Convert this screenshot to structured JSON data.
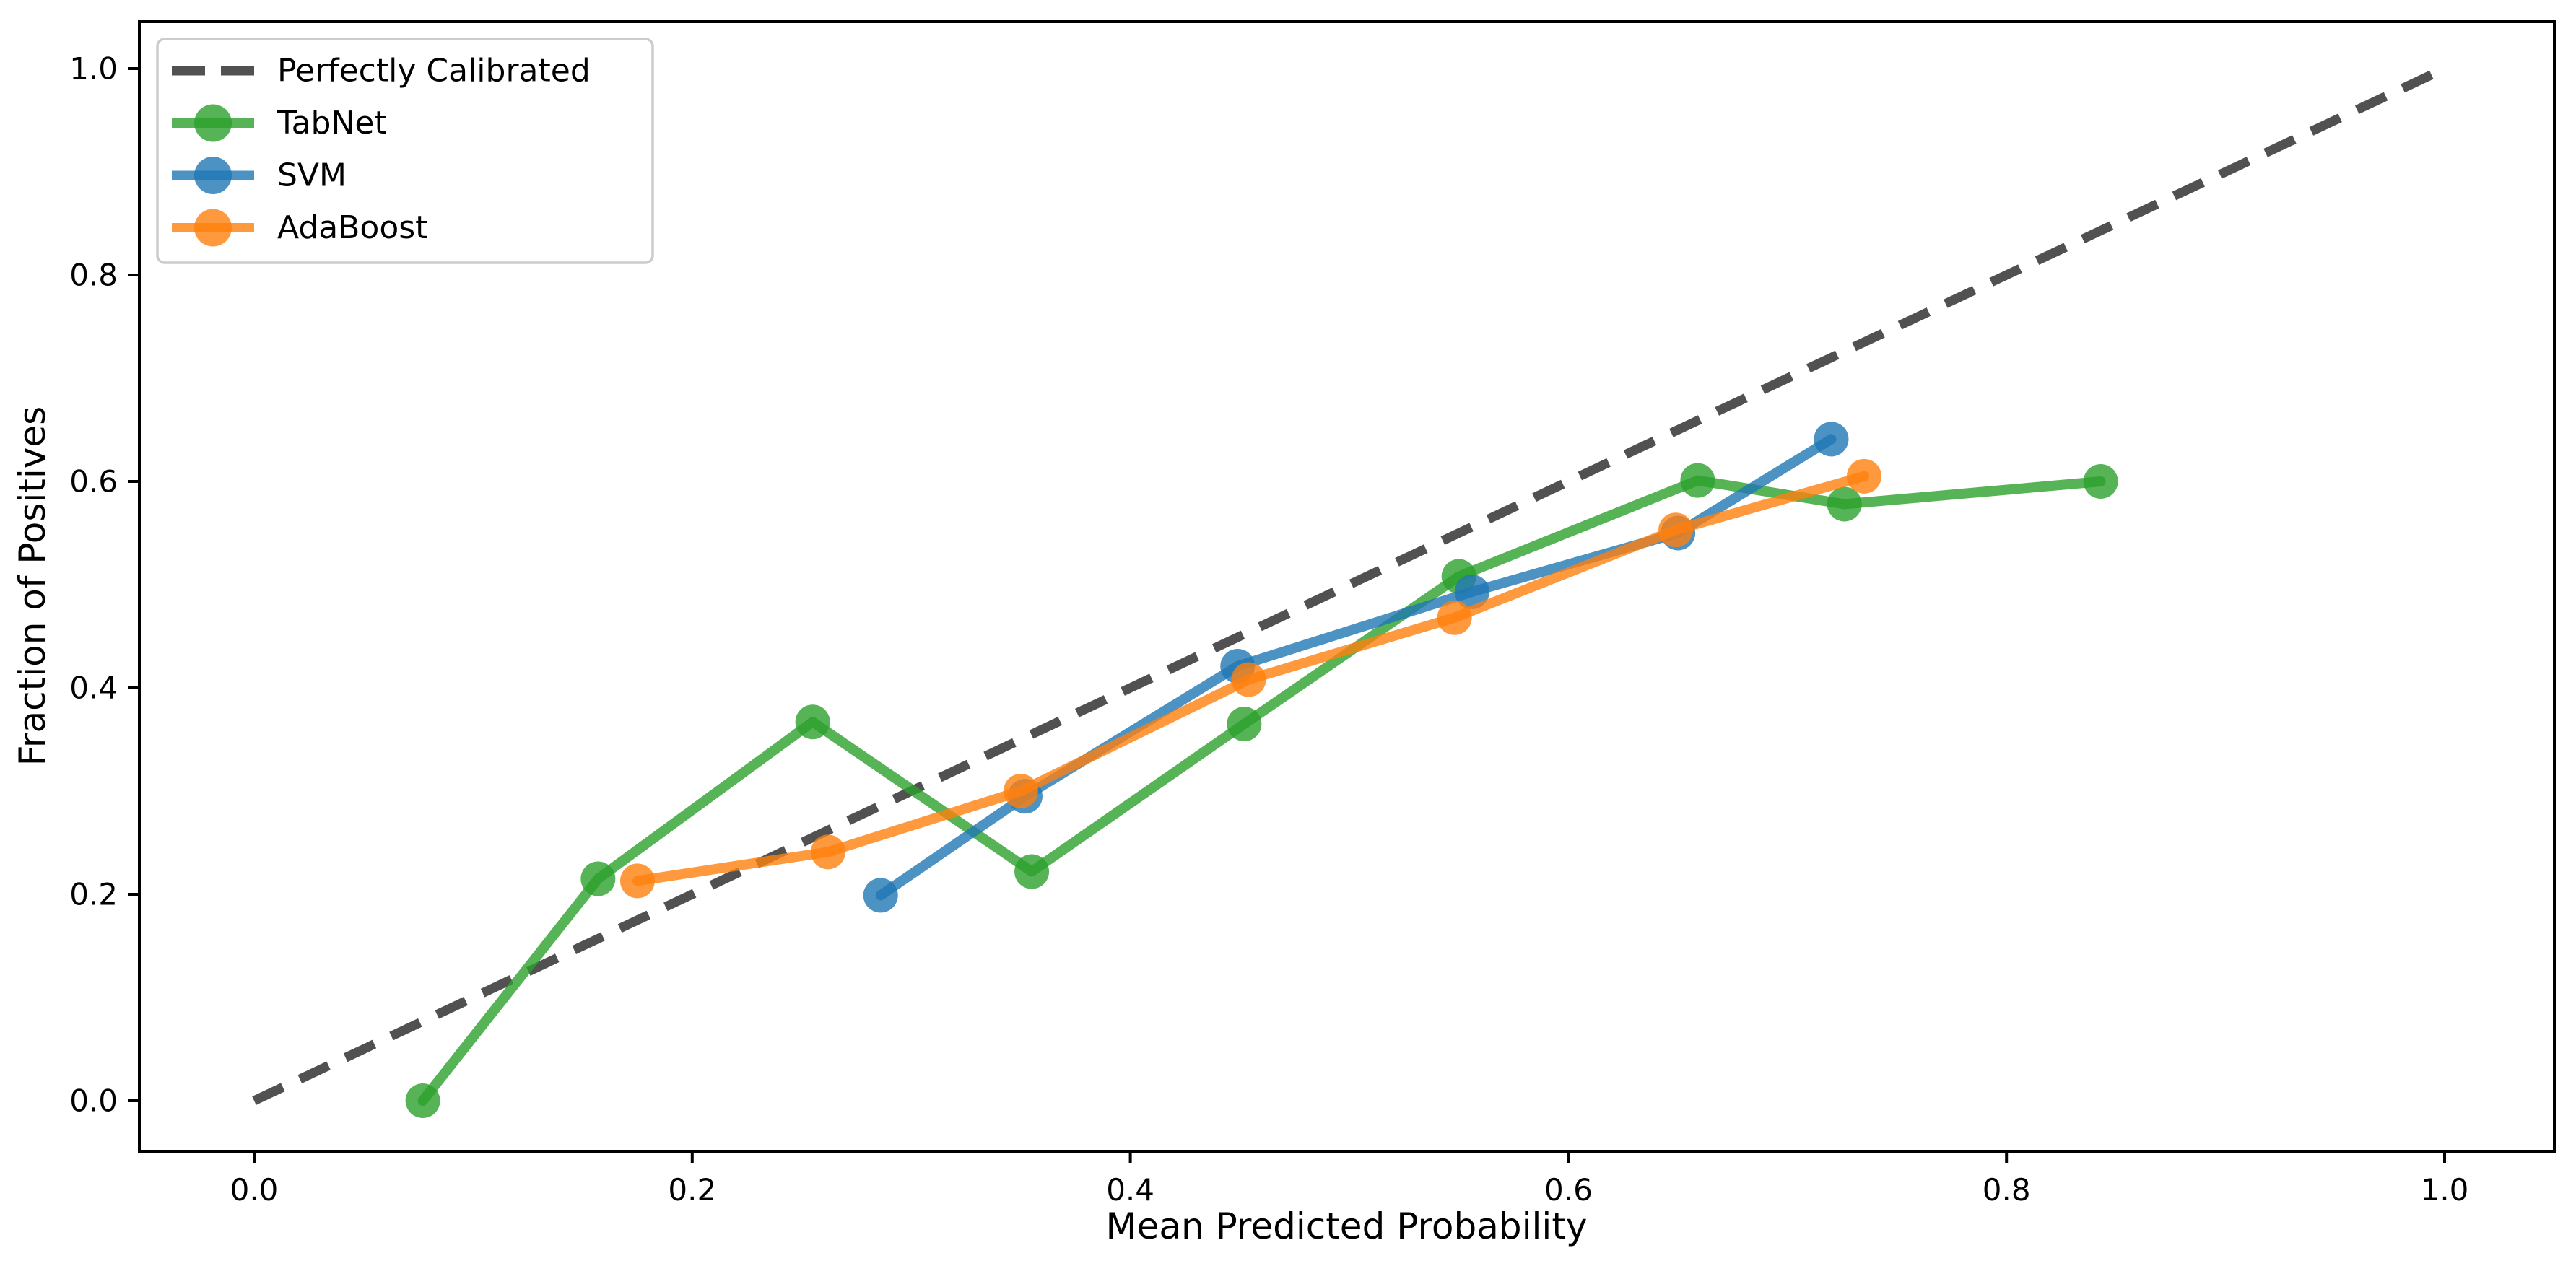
{
  "chart_data": {
    "type": "line",
    "title": "",
    "xlabel": "Mean Predicted Probability",
    "ylabel": "Fraction of Positives",
    "xlim": [
      -0.052,
      1.05
    ],
    "ylim": [
      -0.049,
      1.046
    ],
    "x_ticks": [
      0.0,
      0.2,
      0.4,
      0.6,
      0.8,
      1.0
    ],
    "y_ticks": [
      0.0,
      0.2,
      0.4,
      0.6,
      0.8,
      1.0
    ],
    "grid": false,
    "background_color": "#ffffff",
    "legend": {
      "position": "upper left",
      "border_color": "#cccccc",
      "background": "#ffffff",
      "entries": [
        "Perfectly Calibrated",
        "TabNet",
        "SVM",
        "AdaBoost"
      ]
    },
    "reference_line": {
      "label": "Perfectly Calibrated",
      "style": "dashed",
      "color": "#333333",
      "x": [
        0.0,
        1.0
      ],
      "y": [
        0.0,
        1.0
      ]
    },
    "series": [
      {
        "name": "TabNet",
        "color": "#2ca02c",
        "marker": "circle",
        "x": [
          0.077,
          0.157,
          0.255,
          0.355,
          0.452,
          0.55,
          0.659,
          0.726,
          0.843
        ],
        "y": [
          0.0,
          0.215,
          0.367,
          0.222,
          0.365,
          0.508,
          0.601,
          0.578,
          0.6
        ]
      },
      {
        "name": "SVM",
        "color": "#1f77b4",
        "marker": "circle",
        "x": [
          0.286,
          0.352,
          0.449,
          0.556,
          0.65,
          0.72
        ],
        "y": [
          0.199,
          0.295,
          0.421,
          0.493,
          0.55,
          0.641
        ]
      },
      {
        "name": "AdaBoost",
        "color": "#ff7f0e",
        "marker": "circle",
        "x": [
          0.175,
          0.262,
          0.35,
          0.454,
          0.548,
          0.649,
          0.735
        ],
        "y": [
          0.213,
          0.241,
          0.3,
          0.408,
          0.468,
          0.553,
          0.605
        ]
      }
    ]
  }
}
